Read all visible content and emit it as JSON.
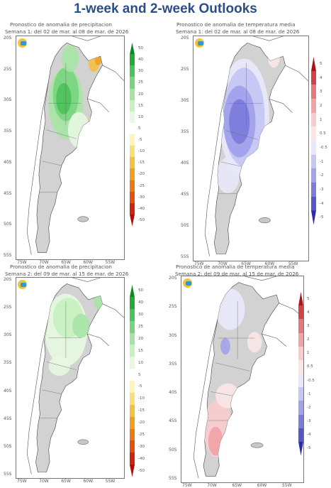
{
  "page_title": "1-week and 2-week Outlooks",
  "panels": [
    {
      "id": "precip-w1",
      "title_line1": "Pronostico de anomalia de precipitacion",
      "title_line2": "Semana 1: del 02 de mar. al 08 de mar. de 2026",
      "variable": "precipitation",
      "colorbar": [
        "50",
        "40",
        "30",
        "25",
        "20",
        "15",
        "10",
        "5",
        "-5",
        "-10",
        "-15",
        "-20",
        "-25",
        "-30",
        "-40",
        "-50"
      ]
    },
    {
      "id": "temp-w1",
      "title_line1": "Pronostico de anomalia de temperatura media",
      "title_line2": "Semana 1: del 02 de mar. al 08 de mar. de 2026",
      "variable": "temperature",
      "colorbar": [
        "5",
        "4",
        "3",
        "2",
        "1",
        "0.5",
        "-0.5",
        "-1",
        "-2",
        "-3",
        "-4",
        "-5"
      ]
    },
    {
      "id": "precip-w2",
      "title_line1": "Pronostico de anomalia de precipitacion",
      "title_line2": "Semana 2: del 09 de mar. al 15 de mar. de 2026",
      "variable": "precipitation",
      "colorbar": [
        "50",
        "40",
        "30",
        "25",
        "20",
        "15",
        "10",
        "5",
        "-5",
        "-10",
        "-15",
        "-20",
        "-25",
        "-30",
        "-40",
        "-50"
      ]
    },
    {
      "id": "temp-w2",
      "title_line1": "Pronostico de anomalia de temperatura media",
      "title_line2": "Semana 2: del 09 de mar. al 15 de mar. de 2026",
      "variable": "temperature",
      "colorbar": [
        "5",
        "4",
        "3",
        "2",
        "1",
        "0.5",
        "-0.5",
        "-1",
        "-2",
        "-3",
        "-4",
        "-5"
      ]
    }
  ],
  "latitude_labels": [
    "20S",
    "25S",
    "30S",
    "35S",
    "40S",
    "45S",
    "50S",
    "55S"
  ],
  "longitude_labels": [
    "75W",
    "70W",
    "65W",
    "60W",
    "55W"
  ],
  "colors": {
    "precip_scale": [
      "#0a8a1e",
      "#28a83a",
      "#4cc25a",
      "#78d47e",
      "#a6e4a6",
      "#c8f0c0",
      "#e6f8e0",
      "#ffffff",
      "#fff4b8",
      "#f8df7a",
      "#f4c040",
      "#f0a020",
      "#ec7a14",
      "#e45010",
      "#d02410",
      "#b00c0c"
    ],
    "temp_scale": [
      "#a8141c",
      "#d04448",
      "#e4787c",
      "#f0a4a8",
      "#f8cccd",
      "#fbe6e6",
      "#e8e8fa",
      "#c6c6f4",
      "#a2a2ec",
      "#7c7cdc",
      "#5656c8",
      "#2c2ca8"
    ],
    "land_gray": "#d2d2d2"
  }
}
